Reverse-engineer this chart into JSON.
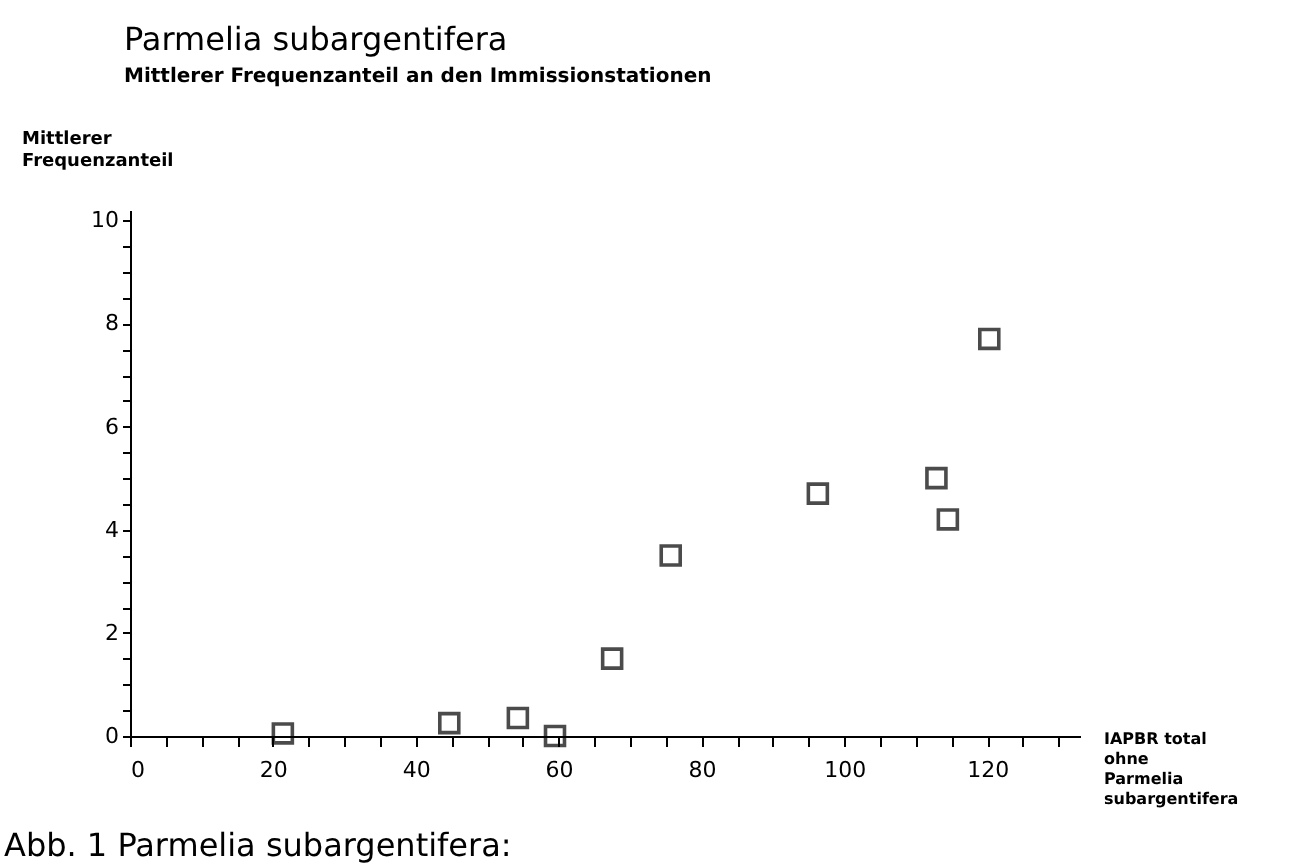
{
  "chart_data": {
    "type": "scatter",
    "title": "Parmelia subargentifera",
    "subtitle": "Mittlerer Frequenzanteil an den Immissionstationen",
    "xlabel": "IAPBR total ohne Parmelia subargentifera",
    "ylabel": "Mittlerer Frequenzanteil",
    "annotations": [
      "Abb. 1   Parmelia subargentifera:"
    ],
    "x": [
      21.4,
      44.7,
      54.3,
      59.5,
      67.5,
      75.7,
      96.3,
      112.9,
      114.5,
      120.3
    ],
    "series": [
      {
        "color": "#000000",
        "values": [
          0.05,
          0.25,
          0.35,
          0.0,
          1.5,
          3.5,
          4.7,
          5.0,
          4.2,
          7.7
        ]
      }
    ],
    "marker": "square",
    "grid": false,
    "xlim": [
      0,
      133
    ],
    "ylim": [
      0,
      10.2
    ],
    "xticks": [
      0,
      {
        "value": 5,
        "label": null
      },
      {
        "value": 10,
        "label": null
      },
      {
        "value": 15,
        "label": null
      },
      20,
      {
        "value": 25,
        "label": null
      },
      {
        "value": 30,
        "label": null
      },
      {
        "value": 35,
        "label": null
      },
      40,
      {
        "value": 45,
        "label": null
      },
      {
        "value": 50,
        "label": null
      },
      {
        "value": 55,
        "label": null
      },
      60,
      {
        "value": 65,
        "label": null
      },
      {
        "value": 70,
        "label": null
      },
      {
        "value": 75,
        "label": null
      },
      80,
      {
        "value": 85,
        "label": null
      },
      {
        "value": 90,
        "label": null
      },
      {
        "value": 95,
        "label": null
      },
      100,
      {
        "value": 105,
        "label": null
      },
      {
        "value": 110,
        "label": null
      },
      {
        "value": 115,
        "label": null
      },
      120,
      {
        "value": 125,
        "label": null
      },
      {
        "value": 130,
        "label": null
      }
    ],
    "yticks": [
      0,
      {
        "value": 0.5,
        "label": null
      },
      {
        "value": 1,
        "label": null
      },
      {
        "value": 1.5,
        "label": null
      },
      2,
      {
        "value": 2.5,
        "label": null
      },
      {
        "value": 3,
        "label": null
      },
      {
        "value": 3.5,
        "label": null
      },
      4,
      {
        "value": 4.5,
        "label": null
      },
      {
        "value": 5,
        "label": null
      },
      {
        "value": 5.5,
        "label": null
      },
      6,
      {
        "value": 6.5,
        "label": null
      },
      {
        "value": 7,
        "label": null
      },
      {
        "value": 7.5,
        "label": null
      },
      8,
      {
        "value": 8.5,
        "label": null
      },
      {
        "value": 9,
        "label": null
      },
      {
        "value": 9.5,
        "label": null
      },
      10
    ]
  }
}
